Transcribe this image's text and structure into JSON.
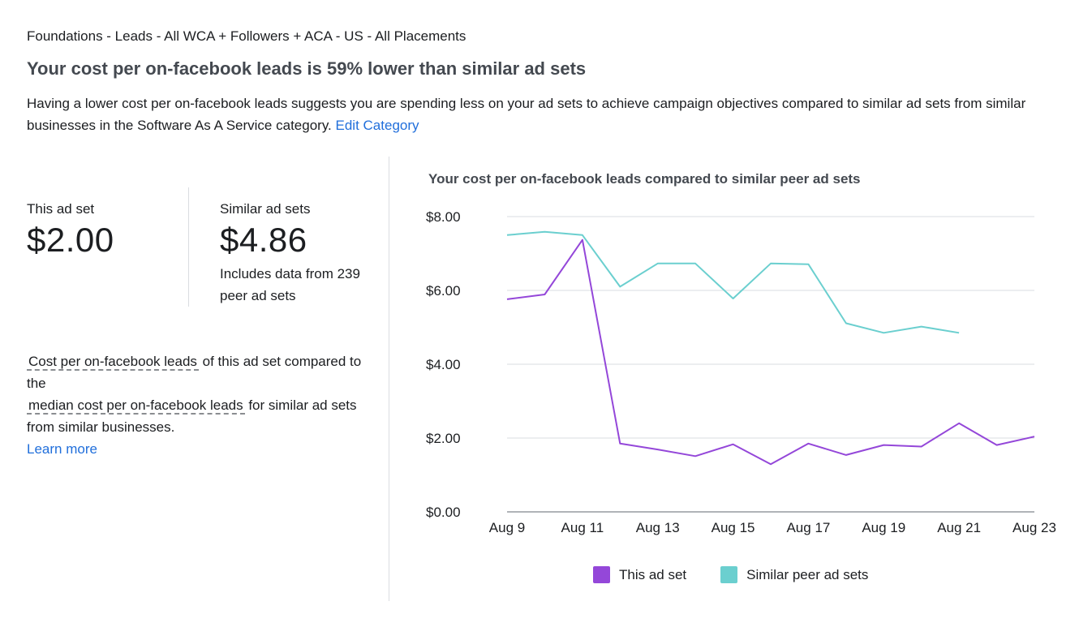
{
  "header": {
    "breadcrumb": "Foundations - Leads - All WCA + Followers + ACA - US - All Placements",
    "headline": "Your cost per on-facebook leads is 59% lower than similar ad sets",
    "description": "Having a lower cost per on-facebook leads suggests you are spending less on your ad sets to achieve campaign objectives compared to similar ad sets from similar businesses in the Software As A Service category.",
    "edit_link": "Edit Category"
  },
  "stats": {
    "this": {
      "label": "This ad set",
      "value": "$2.00"
    },
    "similar": {
      "label": "Similar ad sets",
      "value": "$4.86",
      "note": "Includes data from 239 peer ad sets"
    }
  },
  "explain": {
    "term1": "Cost per on-facebook leads",
    "text1": " of this ad set compared to the",
    "term2": "median cost per on-facebook leads",
    "text2": " for similar ad sets from similar businesses.",
    "learn_more": "Learn more"
  },
  "chart_title": "Your cost per on-facebook leads compared to similar peer ad sets",
  "colors": {
    "this": "#9447d9",
    "similar": "#6bcfcf",
    "link": "#216fdb"
  },
  "chart_data": {
    "type": "line",
    "x": [
      "Aug 9",
      "Aug 10",
      "Aug 11",
      "Aug 12",
      "Aug 13",
      "Aug 14",
      "Aug 15",
      "Aug 16",
      "Aug 17",
      "Aug 18",
      "Aug 19",
      "Aug 20",
      "Aug 21",
      "Aug 22",
      "Aug 23"
    ],
    "x_ticks": [
      "Aug 9",
      "Aug 11",
      "Aug 13",
      "Aug 15",
      "Aug 17",
      "Aug 19",
      "Aug 21",
      "Aug 23"
    ],
    "y_ticks": [
      "$0.00",
      "$2.00",
      "$4.00",
      "$6.00",
      "$8.00"
    ],
    "ylim": [
      0,
      8
    ],
    "grid": true,
    "legend_position": "bottom",
    "series": [
      {
        "name": "This ad set",
        "color": "#9447d9",
        "values": [
          5.76,
          5.89,
          7.37,
          1.85,
          1.69,
          1.51,
          1.83,
          1.29,
          1.85,
          1.54,
          1.81,
          1.77,
          2.4,
          1.81,
          2.04
        ]
      },
      {
        "name": "Similar peer ad sets",
        "color": "#6bcfcf",
        "values": [
          7.5,
          7.59,
          7.5,
          6.1,
          6.73,
          6.73,
          5.78,
          6.73,
          6.71,
          5.11,
          4.85,
          5.02,
          4.85,
          null,
          null
        ]
      }
    ]
  }
}
